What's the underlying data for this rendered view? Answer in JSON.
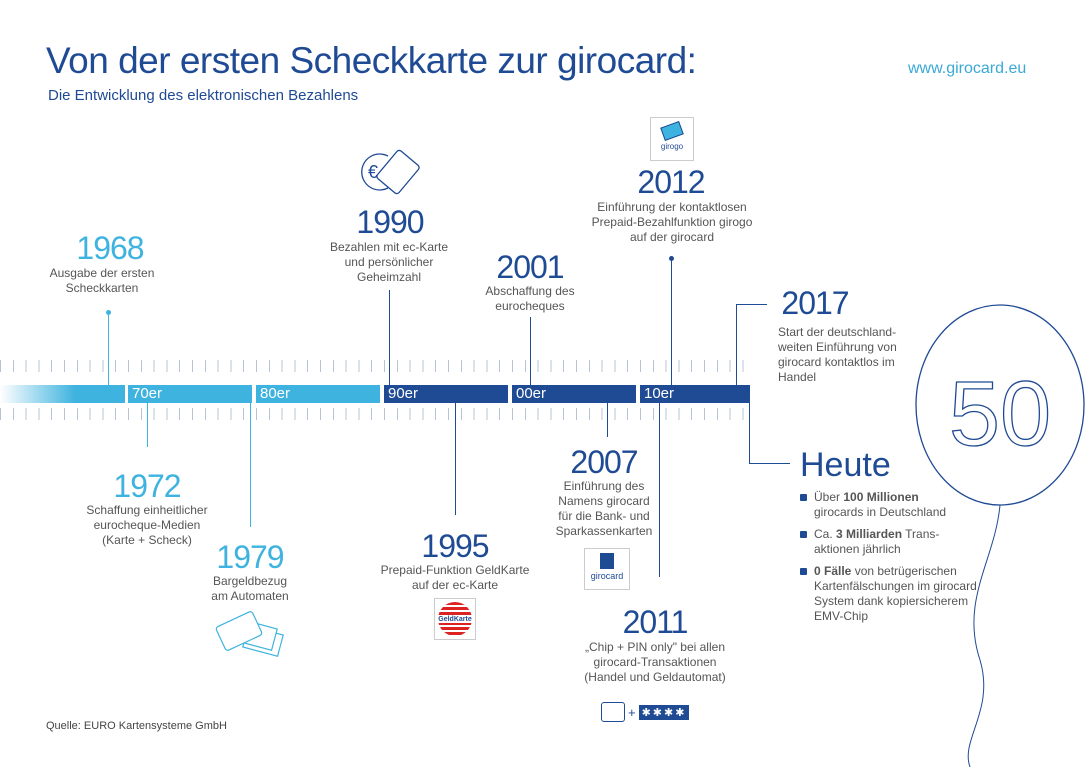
{
  "header": {
    "title": "Von der ersten Scheckkarte zur girocard:",
    "subtitle": "Die Entwicklung des elektronischen Bezahlens",
    "url": "www.girocard.eu"
  },
  "source": "Quelle: EURO Kartensysteme GmbH",
  "decades": [
    "70er",
    "80er",
    "90er",
    "00er",
    "10er"
  ],
  "events": {
    "e1968": {
      "year": "1968",
      "lines": [
        "Ausgabe der ersten",
        "Scheckkarten"
      ]
    },
    "e1972": {
      "year": "1972",
      "lines": [
        "Schaffung einheitlicher",
        "eurocheque-Medien",
        "(Karte + Scheck)"
      ]
    },
    "e1979": {
      "year": "1979",
      "lines": [
        "Bargeldbezug",
        "am Automaten"
      ]
    },
    "e1990": {
      "year": "1990",
      "lines": [
        "Bezahlen mit ec-Karte",
        "und persönlicher",
        "Geheimzahl"
      ]
    },
    "e1995": {
      "year": "1995",
      "lines": [
        "Prepaid-Funktion GeldKarte",
        "auf der ec-Karte"
      ]
    },
    "e2001": {
      "year": "2001",
      "lines": [
        "Abschaffung des",
        "eurocheques"
      ]
    },
    "e2007": {
      "year": "2007",
      "lines": [
        "Einführung des",
        "Namens girocard",
        "für die Bank- und",
        "Sparkassenkarten"
      ]
    },
    "e2011": {
      "year": "2011",
      "lines": [
        "„Chip + PIN only\" bei allen",
        "girocard-Transaktionen",
        "(Handel und Geldautomat)"
      ]
    },
    "e2012": {
      "year": "2012",
      "lines": [
        "Einführung der kontaktlosen",
        "Prepaid-Bezahlfunktion girogo",
        "auf der girocard"
      ]
    },
    "e2017": {
      "year": "2017",
      "lines": [
        "Start der deutschland-",
        "weiten Einführung von",
        "girocard kontaktlos im",
        "Handel"
      ]
    }
  },
  "heute": {
    "title": "Heute",
    "items": [
      {
        "bold": "Über ",
        "b": "100 Millionen",
        "rest": "girocards in Deutschland"
      },
      {
        "bold": "Ca. ",
        "b": "3 Milliarden",
        "rest": " Trans-aktionen jährlich"
      },
      {
        "bold": "",
        "b": "0 Fälle",
        "rest": " von betrügerischen Kartenfälschungen im girocard System dank kopiersicherem EMV-Chip"
      }
    ]
  },
  "logos": {
    "girogo": "girogo",
    "girocard": "girocard",
    "geldkarte": "GeldKarte",
    "balloon": "50",
    "pin": "✱✱✱✱",
    "plus": "+"
  },
  "colors": {
    "dark": "#1f4a94",
    "light": "#3fb3df"
  }
}
